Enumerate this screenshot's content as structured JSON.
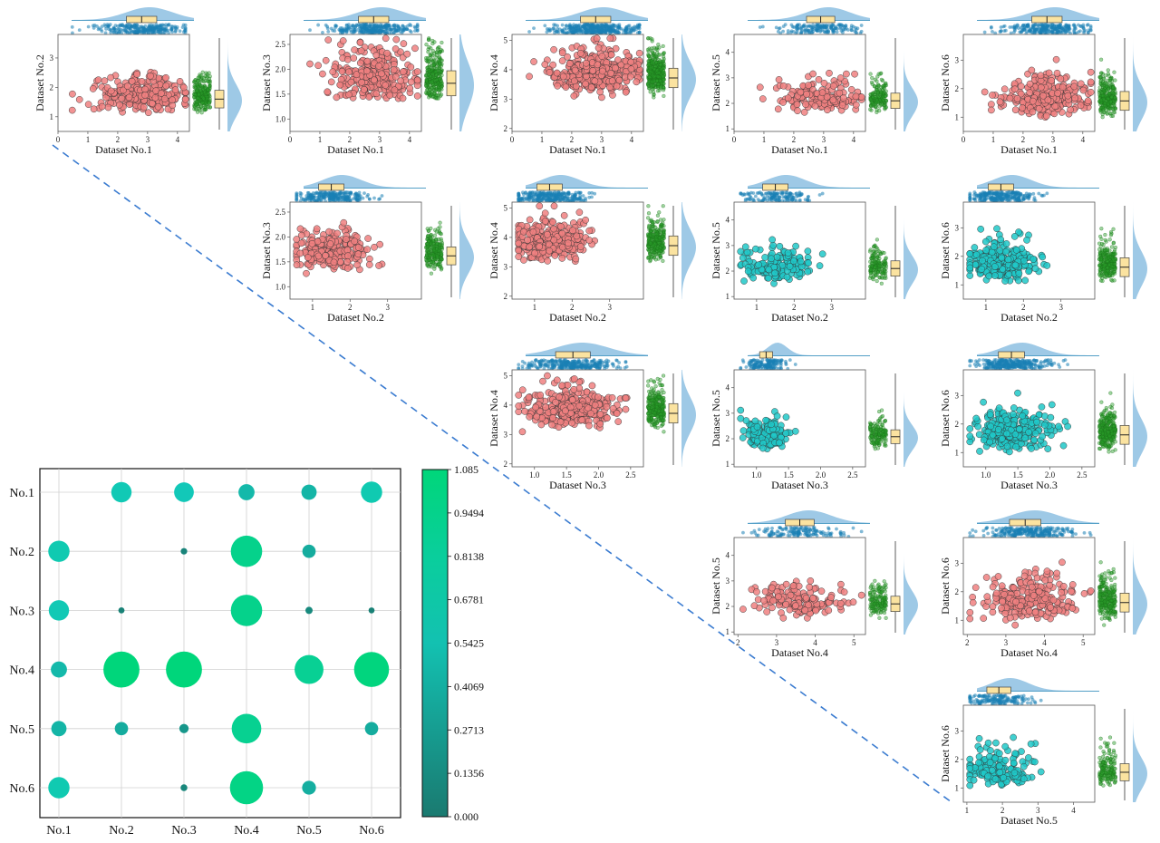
{
  "colors": {
    "red_point": "#f08080",
    "cyan_point": "#20c8c8",
    "green_jitter": "#2aa02a",
    "blue_rug": "#1a7fb5",
    "density_fill": "#9ec9e6",
    "box_fill": "#fbe3a0",
    "dashed_line": "#3a7bd0",
    "axis": "#555555"
  },
  "chart_data": {
    "type": "scatter",
    "datasets": [
      "Dataset No.1",
      "Dataset No.2",
      "Dataset No.3",
      "Dataset No.4",
      "Dataset No.5",
      "Dataset No.6"
    ],
    "panels": [
      {
        "xlabel": "Dataset No.1",
        "ylabel": "Dataset No.2",
        "xticks": [
          "0",
          "1",
          "2",
          "3",
          "4"
        ],
        "yticks": [
          "1",
          "2",
          "3"
        ],
        "xlim": [
          0,
          4.4
        ],
        "ylim": [
          0.5,
          3.8
        ],
        "color": "red",
        "n": 250,
        "xmean": 2.8,
        "xsd": 0.75,
        "ymean": 1.4,
        "ysd": 0.5
      },
      {
        "xlabel": "Dataset No.1",
        "ylabel": "Dataset No.3",
        "xticks": [
          "0",
          "1",
          "2",
          "3",
          "4"
        ],
        "yticks": [
          "1.0",
          "1.5",
          "2.0",
          "2.5"
        ],
        "xlim": [
          0,
          4.4
        ],
        "ylim": [
          0.75,
          2.7
        ],
        "color": "red",
        "n": 280,
        "xmean": 2.8,
        "xsd": 0.75,
        "ymean": 1.55,
        "ysd": 0.42
      },
      {
        "xlabel": "Dataset No.1",
        "ylabel": "Dataset No.4",
        "xticks": [
          "0",
          "1",
          "2",
          "3",
          "4"
        ],
        "yticks": [
          "2",
          "3",
          "4",
          "5"
        ],
        "xlim": [
          0,
          4.4
        ],
        "ylim": [
          1.9,
          5.2
        ],
        "color": "red",
        "n": 380,
        "xmean": 2.8,
        "xsd": 0.75,
        "ymean": 3.5,
        "ysd": 0.55
      },
      {
        "xlabel": "Dataset No.1",
        "ylabel": "Dataset No.5",
        "xticks": [
          "0",
          "1",
          "2",
          "3",
          "4"
        ],
        "yticks": [
          "1",
          "2",
          "3",
          "4"
        ],
        "xlim": [
          0,
          4.4
        ],
        "ylim": [
          0.9,
          4.7
        ],
        "color": "red",
        "n": 170,
        "xmean": 2.9,
        "xsd": 0.7,
        "ymean": 1.9,
        "ysd": 0.5
      },
      {
        "xlabel": "Dataset No.1",
        "ylabel": "Dataset No.6",
        "xticks": [
          "0",
          "1",
          "2",
          "3",
          "4"
        ],
        "yticks": [
          "1",
          "2",
          "3"
        ],
        "xlim": [
          0,
          4.4
        ],
        "ylim": [
          0.5,
          3.9
        ],
        "color": "red",
        "n": 260,
        "xmean": 2.8,
        "xsd": 0.75,
        "ymean": 1.35,
        "ysd": 0.55
      },
      {
        "xlabel": "Dataset No.2",
        "ylabel": "Dataset No.3",
        "xticks": [
          "1",
          "2",
          "3"
        ],
        "yticks": [
          "1.0",
          "1.5",
          "2.0",
          "2.5"
        ],
        "xlim": [
          0.4,
          3.9
        ],
        "ylim": [
          0.75,
          2.7
        ],
        "color": "red",
        "n": 240,
        "xmean": 1.5,
        "xsd": 0.5,
        "ymean": 1.5,
        "ysd": 0.3
      },
      {
        "xlabel": "Dataset No.2",
        "ylabel": "Dataset No.4",
        "xticks": [
          "1",
          "2",
          "3"
        ],
        "yticks": [
          "2",
          "3",
          "4",
          "5"
        ],
        "xlim": [
          0.4,
          3.9
        ],
        "ylim": [
          1.9,
          5.2
        ],
        "color": "red",
        "n": 280,
        "xmean": 1.4,
        "xsd": 0.5,
        "ymean": 3.5,
        "ysd": 0.55
      },
      {
        "xlabel": "Dataset No.2",
        "ylabel": "Dataset No.5",
        "xticks": [
          "1",
          "2",
          "3"
        ],
        "yticks": [
          "1",
          "2",
          "3",
          "4"
        ],
        "xlim": [
          0.4,
          3.9
        ],
        "ylim": [
          0.9,
          4.7
        ],
        "color": "cyan",
        "n": 150,
        "xmean": 1.5,
        "xsd": 0.5,
        "ymean": 1.9,
        "ysd": 0.5
      },
      {
        "xlabel": "Dataset No.2",
        "ylabel": "Dataset No.6",
        "xticks": [
          "1",
          "2",
          "3"
        ],
        "yticks": [
          "1",
          "2",
          "3"
        ],
        "xlim": [
          0.4,
          3.9
        ],
        "ylim": [
          0.5,
          3.9
        ],
        "color": "cyan",
        "n": 260,
        "xmean": 1.4,
        "xsd": 0.5,
        "ymean": 1.4,
        "ysd": 0.55
      },
      {
        "xlabel": "Dataset No.3",
        "ylabel": "Dataset No.4",
        "xticks": [
          "1.0",
          "1.5",
          "2.0",
          "2.5"
        ],
        "yticks": [
          "2",
          "3",
          "4",
          "5"
        ],
        "xlim": [
          0.65,
          2.7
        ],
        "ylim": [
          1.9,
          5.2
        ],
        "color": "red",
        "n": 300,
        "xmean": 1.6,
        "xsd": 0.4,
        "ymean": 3.5,
        "ysd": 0.55
      },
      {
        "xlabel": "Dataset No.3",
        "ylabel": "Dataset No.5",
        "xticks": [
          "1.0",
          "1.5",
          "2.0",
          "2.5"
        ],
        "yticks": [
          "1",
          "2",
          "3",
          "4"
        ],
        "xlim": [
          0.65,
          2.7
        ],
        "ylim": [
          0.9,
          4.7
        ],
        "color": "cyan",
        "n": 150,
        "xmean": 1.15,
        "xsd": 0.15,
        "ymean": 1.9,
        "ysd": 0.45
      },
      {
        "xlabel": "Dataset No.3",
        "ylabel": "Dataset No.6",
        "xticks": [
          "1.0",
          "1.5",
          "2.0",
          "2.5"
        ],
        "yticks": [
          "1",
          "2",
          "3"
        ],
        "xlim": [
          0.65,
          2.7
        ],
        "ylim": [
          0.5,
          3.9
        ],
        "color": "cyan",
        "n": 300,
        "xmean": 1.4,
        "xsd": 0.3,
        "ymean": 1.4,
        "ysd": 0.55
      },
      {
        "xlabel": "Dataset No.4",
        "ylabel": "Dataset No.5",
        "xticks": [
          "2",
          "3",
          "4",
          "5"
        ],
        "yticks": [
          "1",
          "2",
          "3",
          "4"
        ],
        "xlim": [
          1.9,
          5.3
        ],
        "ylim": [
          0.9,
          4.7
        ],
        "color": "red",
        "n": 150,
        "xmean": 3.6,
        "xsd": 0.55,
        "ymean": 1.9,
        "ysd": 0.5
      },
      {
        "xlabel": "Dataset No.4",
        "ylabel": "Dataset No.6",
        "xticks": [
          "2",
          "3",
          "4",
          "5"
        ],
        "yticks": [
          "1",
          "2",
          "3"
        ],
        "xlim": [
          1.9,
          5.3
        ],
        "ylim": [
          0.5,
          3.9
        ],
        "color": "red",
        "n": 260,
        "xmean": 3.5,
        "xsd": 0.6,
        "ymean": 1.4,
        "ysd": 0.55
      },
      {
        "xlabel": "Dataset No.5",
        "ylabel": "Dataset No.6",
        "xticks": [
          "1",
          "2",
          "3",
          "4"
        ],
        "yticks": [
          "1",
          "2",
          "3"
        ],
        "xlim": [
          0.9,
          4.6
        ],
        "ylim": [
          0.5,
          3.9
        ],
        "color": "cyan",
        "n": 160,
        "xmean": 1.9,
        "xsd": 0.5,
        "ymean": 1.35,
        "ysd": 0.5
      }
    ],
    "bubble_matrix": {
      "type": "bubble-matrix",
      "rows": [
        "No.1",
        "No.2",
        "No.3",
        "No.4",
        "No.5",
        "No.6"
      ],
      "cols": [
        "No.1",
        "No.2",
        "No.3",
        "No.4",
        "No.5",
        "No.6"
      ],
      "values": [
        [
          null,
          0.62,
          0.6,
          0.48,
          0.45,
          0.65
        ],
        [
          0.65,
          null,
          0.08,
          0.95,
          0.38,
          null
        ],
        [
          0.62,
          0.06,
          null,
          0.95,
          0.12,
          0.05
        ],
        [
          0.48,
          1.08,
          1.08,
          null,
          0.88,
          1.05
        ],
        [
          0.45,
          0.38,
          0.22,
          0.9,
          null,
          0.38
        ],
        [
          0.65,
          null,
          0.1,
          1.0,
          0.4,
          null
        ]
      ],
      "colorbar_ticks": [
        "1.085",
        "0.9494",
        "0.8138",
        "0.6781",
        "0.5425",
        "0.4069",
        "0.2713",
        "0.1356",
        "0.000"
      ],
      "colorbar_range": [
        0,
        1.085
      ]
    }
  }
}
